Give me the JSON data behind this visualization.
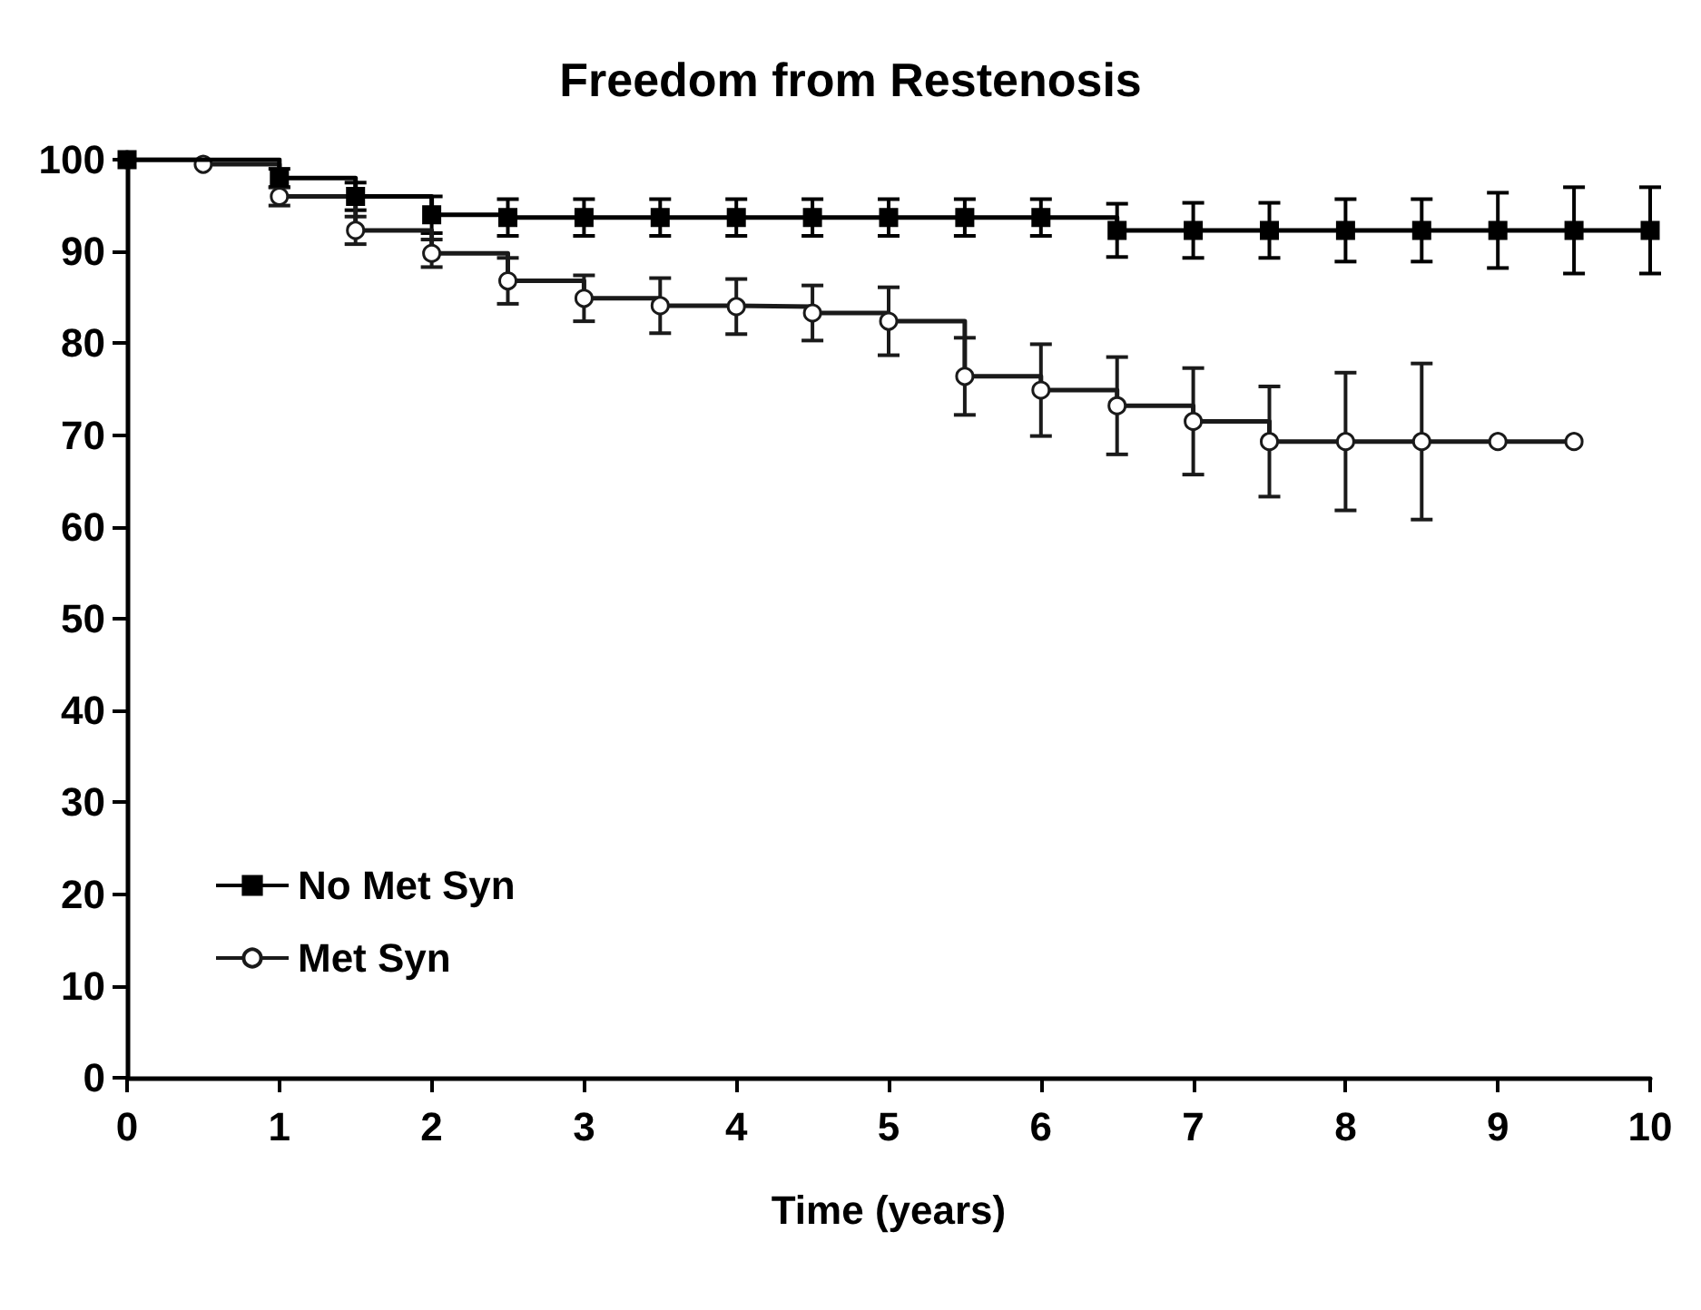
{
  "chart_data": {
    "type": "step",
    "title": "Freedom from Restenosis",
    "xlabel": "Time (years)",
    "xlim": [
      0,
      10
    ],
    "xticks": [
      0,
      1,
      2,
      3,
      4,
      5,
      6,
      7,
      8,
      9,
      10
    ],
    "ylim": [
      0,
      100
    ],
    "yticks": [
      0,
      10,
      20,
      30,
      40,
      50,
      60,
      70,
      80,
      90,
      100
    ],
    "grid": false,
    "legend": "bottom left",
    "series": [
      {
        "name": "No Met Syn",
        "color": "#000000",
        "marker": "square",
        "x": [
          0,
          1,
          1.5,
          2,
          2.5,
          3,
          3.5,
          4,
          4.5,
          5,
          5.5,
          6,
          6.5,
          7,
          7.5,
          8,
          8.5,
          9,
          9.5,
          10
        ],
        "values": [
          100,
          98,
          96,
          94,
          93.7,
          93.7,
          93.7,
          93.7,
          93.7,
          93.7,
          93.7,
          93.7,
          92.3,
          92.3,
          92.3,
          92.3,
          92.3,
          92.3,
          92.3,
          92.3
        ],
        "errors": [
          null,
          1,
          1.5,
          2,
          2,
          2,
          2,
          2,
          2,
          2,
          2,
          2,
          2.9,
          3,
          3,
          3.4,
          3.4,
          4.1,
          4.7,
          4.7
        ]
      },
      {
        "name": "Met Syn",
        "color": "#1a1a1a",
        "marker": "circle",
        "x": [
          0,
          0.5,
          1,
          1.5,
          2,
          2.5,
          3,
          3.5,
          4,
          4.5,
          5,
          5.5,
          6,
          6.5,
          7,
          7.5,
          8,
          8.5,
          9,
          9.5
        ],
        "values": [
          100,
          99.5,
          96,
          92.3,
          89.8,
          86.8,
          84.9,
          84.1,
          84,
          83.3,
          82.4,
          76.4,
          74.9,
          73.2,
          71.5,
          69.3,
          69.3,
          69.3,
          69.3,
          69.3
        ],
        "errors": [
          null,
          null,
          1,
          1.5,
          1.5,
          2.5,
          2.5,
          3,
          3,
          3,
          3.7,
          4.2,
          5,
          5.3,
          5.8,
          6,
          7.5,
          8.5,
          null,
          null
        ]
      }
    ]
  }
}
